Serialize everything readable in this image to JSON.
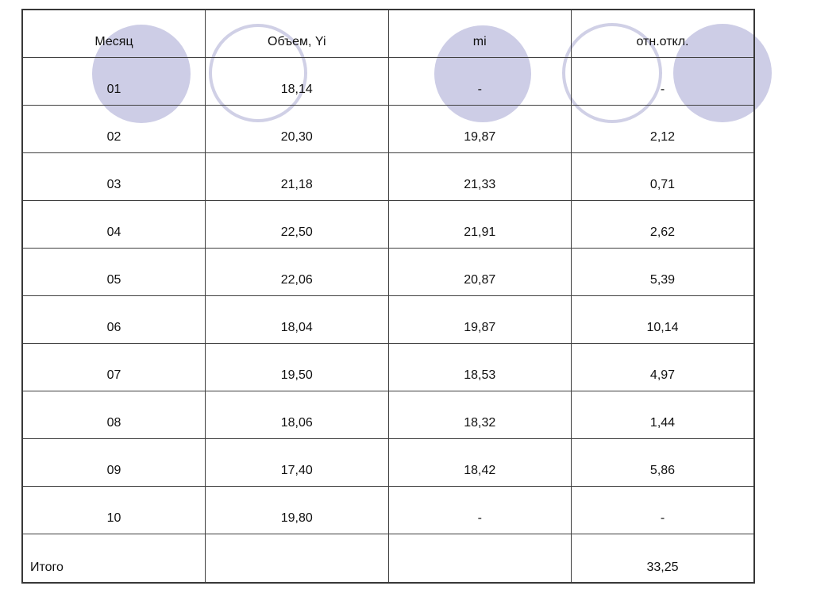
{
  "table": {
    "headers": [
      "Месяц",
      "Объем, Yi",
      "mi",
      "отн.откл."
    ],
    "rows": [
      [
        "01",
        "18,14",
        "-",
        "-"
      ],
      [
        "02",
        "20,30",
        "19,87",
        "2,12"
      ],
      [
        "03",
        "21,18",
        "21,33",
        "0,71"
      ],
      [
        "04",
        "22,50",
        "21,91",
        "2,62"
      ],
      [
        "05",
        "22,06",
        "20,87",
        "5,39"
      ],
      [
        "06",
        "18,04",
        "19,87",
        "10,14"
      ],
      [
        "07",
        "19,50",
        "18,53",
        "4,97"
      ],
      [
        "08",
        "18,06",
        "18,32",
        "1,44"
      ],
      [
        "09",
        "17,40",
        "18,42",
        "5,86"
      ],
      [
        "10",
        "19,80",
        "-",
        "-"
      ],
      [
        "Итого",
        "",
        "",
        "33,25"
      ]
    ]
  },
  "decoration": {
    "circle_fill_color": "#cdcde6",
    "ring_stroke_color": "#d0d0e6"
  }
}
